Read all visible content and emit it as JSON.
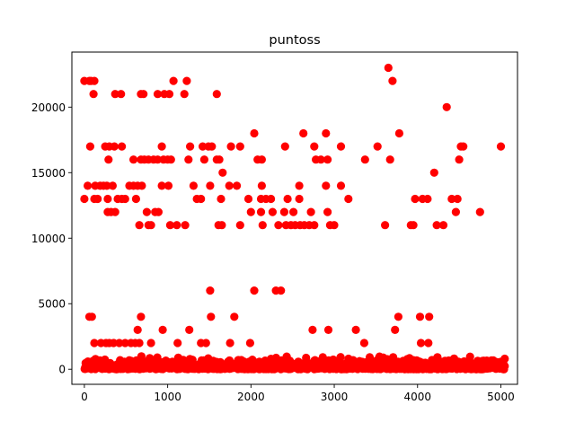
{
  "chart_data": {
    "type": "scatter",
    "title": "puntoss",
    "xlabel": "",
    "ylabel": "",
    "xlim": [
      -150,
      5200
    ],
    "ylim": [
      -1150,
      24200
    ],
    "grid": false,
    "marker_color": "#ff0000",
    "x_ticks": [
      0,
      1000,
      2000,
      3000,
      4000,
      5000
    ],
    "x_tick_labels": [
      "0",
      "1000",
      "2000",
      "3000",
      "4000",
      "5000"
    ],
    "y_ticks": [
      0,
      5000,
      10000,
      15000,
      20000
    ],
    "y_tick_labels": [
      "0",
      "5000",
      "10000",
      "15000",
      "20000"
    ],
    "series": [
      {
        "points": [
          [
            0,
            22000
          ],
          [
            60,
            22000
          ],
          [
            80,
            22000
          ],
          [
            110,
            21000
          ],
          [
            120,
            22000
          ],
          [
            370,
            21000
          ],
          [
            440,
            21000
          ],
          [
            680,
            21000
          ],
          [
            710,
            21000
          ],
          [
            880,
            21000
          ],
          [
            960,
            21000
          ],
          [
            1020,
            21000
          ],
          [
            1070,
            22000
          ],
          [
            1200,
            21000
          ],
          [
            1230,
            22000
          ],
          [
            1590,
            21000
          ],
          [
            3650,
            23000
          ],
          [
            3700,
            22000
          ],
          [
            4350,
            20000
          ],
          [
            2040,
            18000
          ],
          [
            2630,
            18000
          ],
          [
            2900,
            18000
          ],
          [
            3780,
            18000
          ],
          [
            70,
            17000
          ],
          [
            250,
            17000
          ],
          [
            300,
            17000
          ],
          [
            360,
            17000
          ],
          [
            450,
            17000
          ],
          [
            930,
            17000
          ],
          [
            1270,
            17000
          ],
          [
            1420,
            17000
          ],
          [
            1490,
            17000
          ],
          [
            1530,
            17000
          ],
          [
            1760,
            17000
          ],
          [
            1870,
            17000
          ],
          [
            2410,
            17000
          ],
          [
            2760,
            17000
          ],
          [
            3080,
            17000
          ],
          [
            3520,
            17000
          ],
          [
            4520,
            17000
          ],
          [
            4550,
            17000
          ],
          [
            5000,
            17000
          ],
          [
            290,
            16000
          ],
          [
            590,
            16000
          ],
          [
            680,
            16000
          ],
          [
            720,
            16000
          ],
          [
            770,
            16000
          ],
          [
            830,
            16000
          ],
          [
            880,
            16000
          ],
          [
            950,
            16000
          ],
          [
            1000,
            16000
          ],
          [
            1040,
            16000
          ],
          [
            1250,
            16000
          ],
          [
            1440,
            16000
          ],
          [
            1590,
            16000
          ],
          [
            1620,
            16000
          ],
          [
            2080,
            16000
          ],
          [
            2130,
            16000
          ],
          [
            2780,
            16000
          ],
          [
            2840,
            16000
          ],
          [
            2920,
            16000
          ],
          [
            3370,
            16000
          ],
          [
            3670,
            16000
          ],
          [
            4500,
            16000
          ],
          [
            1660,
            15000
          ],
          [
            4200,
            15000
          ],
          [
            40,
            14000
          ],
          [
            130,
            14000
          ],
          [
            190,
            14000
          ],
          [
            230,
            14000
          ],
          [
            270,
            14000
          ],
          [
            340,
            14000
          ],
          [
            540,
            14000
          ],
          [
            590,
            14000
          ],
          [
            640,
            14000
          ],
          [
            690,
            14000
          ],
          [
            930,
            14000
          ],
          [
            1010,
            14000
          ],
          [
            1310,
            14000
          ],
          [
            1510,
            14000
          ],
          [
            1740,
            14000
          ],
          [
            1830,
            14000
          ],
          [
            2130,
            14000
          ],
          [
            2580,
            14000
          ],
          [
            2900,
            14000
          ],
          [
            3080,
            14000
          ],
          [
            0,
            13000
          ],
          [
            120,
            13000
          ],
          [
            160,
            13000
          ],
          [
            280,
            13000
          ],
          [
            400,
            13000
          ],
          [
            450,
            13000
          ],
          [
            490,
            13000
          ],
          [
            620,
            13000
          ],
          [
            1350,
            13000
          ],
          [
            1400,
            13000
          ],
          [
            1640,
            13000
          ],
          [
            1970,
            13000
          ],
          [
            2120,
            13000
          ],
          [
            2180,
            13000
          ],
          [
            2240,
            13000
          ],
          [
            2440,
            13000
          ],
          [
            2580,
            13000
          ],
          [
            3170,
            13000
          ],
          [
            3970,
            13000
          ],
          [
            4060,
            13000
          ],
          [
            4120,
            13000
          ],
          [
            4410,
            13000
          ],
          [
            4480,
            13000
          ],
          [
            280,
            12000
          ],
          [
            320,
            12000
          ],
          [
            370,
            12000
          ],
          [
            750,
            12000
          ],
          [
            850,
            12000
          ],
          [
            890,
            12000
          ],
          [
            2000,
            12000
          ],
          [
            2120,
            12000
          ],
          [
            2260,
            12000
          ],
          [
            2400,
            12000
          ],
          [
            2510,
            12000
          ],
          [
            2720,
            12000
          ],
          [
            2920,
            12000
          ],
          [
            4460,
            12000
          ],
          [
            4750,
            12000
          ],
          [
            660,
            11000
          ],
          [
            770,
            11000
          ],
          [
            800,
            11000
          ],
          [
            1030,
            11000
          ],
          [
            1110,
            11000
          ],
          [
            1210,
            11000
          ],
          [
            1610,
            11000
          ],
          [
            1650,
            11000
          ],
          [
            1870,
            11000
          ],
          [
            2140,
            11000
          ],
          [
            2330,
            11000
          ],
          [
            2420,
            11000
          ],
          [
            2480,
            11000
          ],
          [
            2530,
            11000
          ],
          [
            2590,
            11000
          ],
          [
            2640,
            11000
          ],
          [
            2700,
            11000
          ],
          [
            2760,
            11000
          ],
          [
            2950,
            11000
          ],
          [
            3000,
            11000
          ],
          [
            3610,
            11000
          ],
          [
            3920,
            11000
          ],
          [
            3950,
            11000
          ],
          [
            4230,
            11000
          ],
          [
            4310,
            11000
          ],
          [
            1510,
            6000
          ],
          [
            2040,
            6000
          ],
          [
            2300,
            6000
          ],
          [
            2360,
            6000
          ],
          [
            60,
            4000
          ],
          [
            90,
            4000
          ],
          [
            680,
            4000
          ],
          [
            1520,
            4000
          ],
          [
            1800,
            4000
          ],
          [
            3770,
            4000
          ],
          [
            4030,
            4000
          ],
          [
            4140,
            4000
          ],
          [
            640,
            3000
          ],
          [
            940,
            3000
          ],
          [
            1260,
            3000
          ],
          [
            2740,
            3000
          ],
          [
            2930,
            3000
          ],
          [
            3260,
            3000
          ],
          [
            3730,
            3000
          ],
          [
            120,
            2000
          ],
          [
            200,
            2000
          ],
          [
            260,
            2000
          ],
          [
            300,
            2000
          ],
          [
            350,
            2000
          ],
          [
            420,
            2000
          ],
          [
            490,
            2000
          ],
          [
            560,
            2000
          ],
          [
            610,
            2000
          ],
          [
            660,
            2000
          ],
          [
            800,
            2000
          ],
          [
            1120,
            2000
          ],
          [
            1400,
            2000
          ],
          [
            1460,
            2000
          ],
          [
            1750,
            2000
          ],
          [
            1990,
            2000
          ],
          [
            3360,
            2000
          ],
          [
            4040,
            2000
          ],
          [
            4130,
            2000
          ]
        ]
      }
    ]
  }
}
